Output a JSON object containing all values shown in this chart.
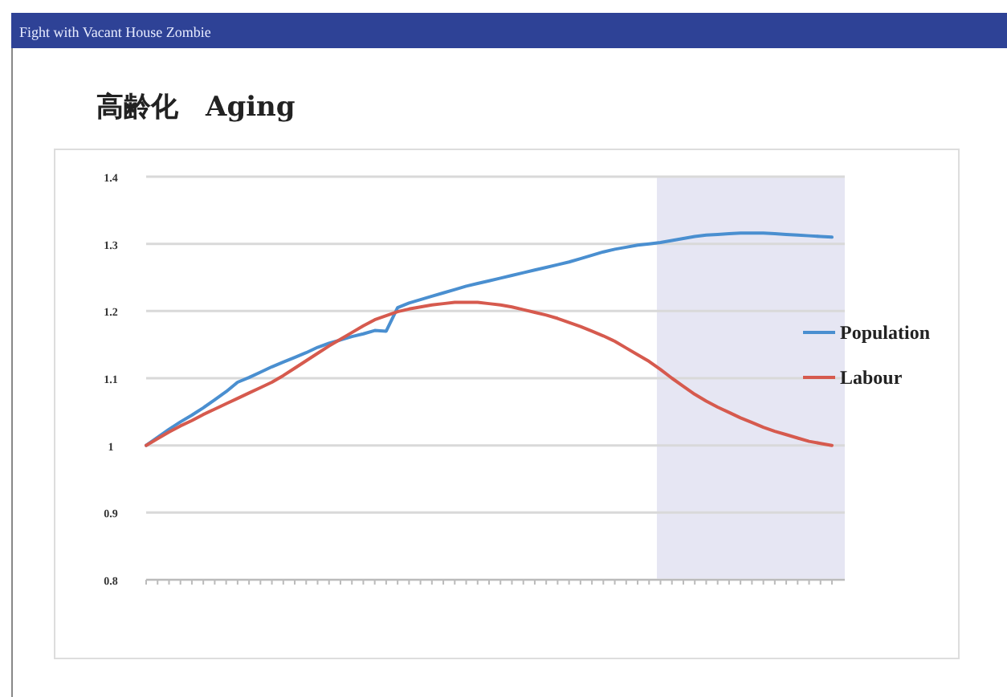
{
  "chart_data": {
    "type": "line",
    "title": "高齢化　Aging",
    "annotations": [
      "Fight with Vacant House Zombie"
    ],
    "categories": [
      null,
      null,
      null,
      null,
      null,
      null,
      null,
      null,
      null,
      null,
      null,
      null,
      null,
      null,
      null,
      null,
      null,
      null,
      null,
      null,
      null,
      null,
      null,
      null,
      null,
      null,
      null,
      null,
      null,
      null,
      null,
      null,
      null,
      null,
      null,
      null,
      null,
      null,
      null,
      null,
      null,
      null,
      null,
      null,
      null,
      null,
      null,
      null,
      null,
      null,
      null,
      null,
      null,
      null,
      null,
      null,
      null,
      null,
      null,
      null,
      null
    ],
    "series": [
      {
        "name": "Population",
        "color": "#4a8fd0",
        "values": [
          1.0,
          1.012,
          1.024,
          1.035,
          1.045,
          1.056,
          1.068,
          1.08,
          1.094,
          1.101,
          1.109,
          1.117,
          1.124,
          1.131,
          1.138,
          1.146,
          1.152,
          1.157,
          1.162,
          1.166,
          1.171,
          1.17,
          1.205,
          1.212,
          1.217,
          1.222,
          1.227,
          1.232,
          1.237,
          1.241,
          1.245,
          1.249,
          1.253,
          1.257,
          1.261,
          1.265,
          1.269,
          1.273,
          1.278,
          1.283,
          1.288,
          1.292,
          1.295,
          1.298,
          1.3,
          1.302,
          1.305,
          1.308,
          1.311,
          1.313,
          1.314,
          1.315,
          1.316,
          1.316,
          1.316,
          1.315,
          1.314,
          1.313,
          1.312,
          1.311,
          1.31
        ]
      },
      {
        "name": "Labour",
        "color": "#d65a4e",
        "values": [
          1.0,
          1.01,
          1.02,
          1.029,
          1.037,
          1.046,
          1.054,
          1.062,
          1.07,
          1.078,
          1.086,
          1.094,
          1.104,
          1.115,
          1.126,
          1.137,
          1.148,
          1.158,
          1.168,
          1.178,
          1.187,
          1.193,
          1.199,
          1.203,
          1.206,
          1.209,
          1.211,
          1.213,
          1.213,
          1.213,
          1.211,
          1.209,
          1.206,
          1.202,
          1.198,
          1.194,
          1.189,
          1.183,
          1.177,
          1.17,
          1.163,
          1.155,
          1.145,
          1.135,
          1.125,
          1.113,
          1.1,
          1.088,
          1.076,
          1.066,
          1.057,
          1.049,
          1.041,
          1.034,
          1.027,
          1.021,
          1.016,
          1.011,
          1.006,
          1.003,
          1.0
        ]
      }
    ],
    "ylim": [
      0.8,
      1.4
    ],
    "yticks": [
      0.8,
      0.9,
      1,
      1.1,
      1.2,
      1.3,
      1.4
    ],
    "grid": "y",
    "legend": "right",
    "marker": "none",
    "line_style": "solid"
  }
}
